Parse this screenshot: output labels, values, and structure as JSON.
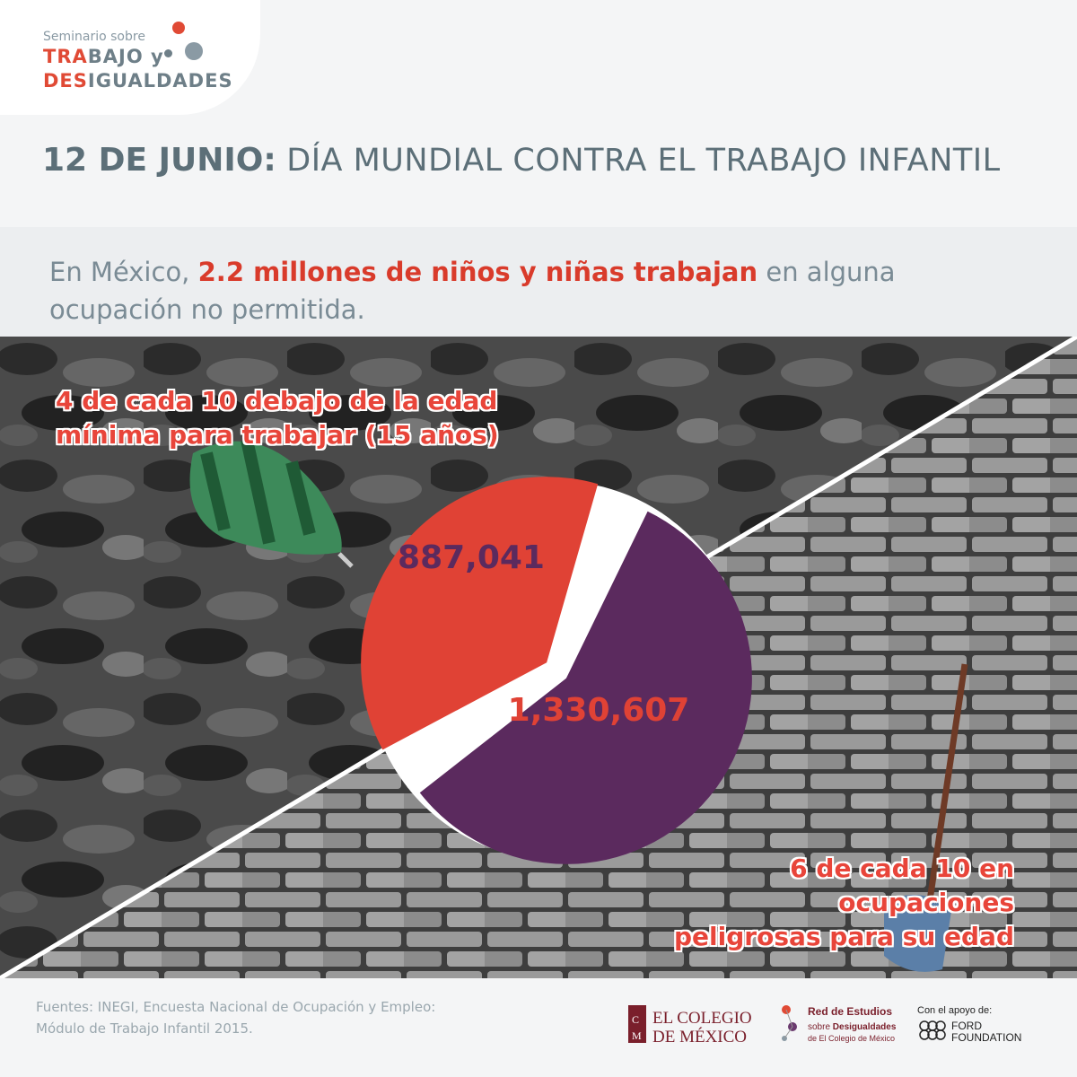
{
  "logo": {
    "line1": "Seminario sobre",
    "line2_hl": "TRA",
    "line2_rest": "BAJO y",
    "line3_hl": "DES",
    "line3_rest": "IGUALDADES"
  },
  "headline": {
    "date": "12 DE JUNIO:",
    "title": "DÍA MUNDIAL CONTRA EL TRABAJO INFANTIL"
  },
  "lead": {
    "prefix": "En México, ",
    "highlight": "2.2 millones de niños y niñas trabajan",
    "suffix": " en alguna ocupación no permitida."
  },
  "chart_data": {
    "type": "pie",
    "categories": [
      "4 de cada 10 debajo de la edad mínima para trabajar (15 años)",
      "6 de cada 10 en ocupaciones peligrosas para su edad"
    ],
    "values": [
      887041,
      1330607
    ],
    "value_labels": [
      "887,041",
      "1,330,607"
    ],
    "colors": [
      "#e04235",
      "#5b2a5e"
    ],
    "label_colors": [
      "#5b2a5e",
      "#e04235"
    ]
  },
  "labels": {
    "top_line1": "4 de cada 10 debajo de la edad",
    "top_line2": "mínima para trabajar (15 años)",
    "bottom_line1": "6 de cada 10 en ocupaciones",
    "bottom_line2": "peligrosas para su edad"
  },
  "footer": {
    "sources_line1": "Fuentes: INEGI, Encuesta Nacional de Ocupación y Empleo:",
    "sources_line2": "Módulo de Trabajo Infantil 2015.",
    "colmex_line1": "EL COLEGIO",
    "colmex_line2": "DE MÉXICO",
    "red_line1": "Red de Estudios",
    "red_line2a": "sobre ",
    "red_line2b": "Desigualdades",
    "red_line3": "de El Colegio de México",
    "ford_line1": "Con el apoyo de:",
    "ford_line2": "FORD",
    "ford_line3": "FOUNDATION"
  },
  "colors": {
    "accent": "#e04a35",
    "slate": "#5c6f78",
    "purple": "#5b2a5e"
  }
}
